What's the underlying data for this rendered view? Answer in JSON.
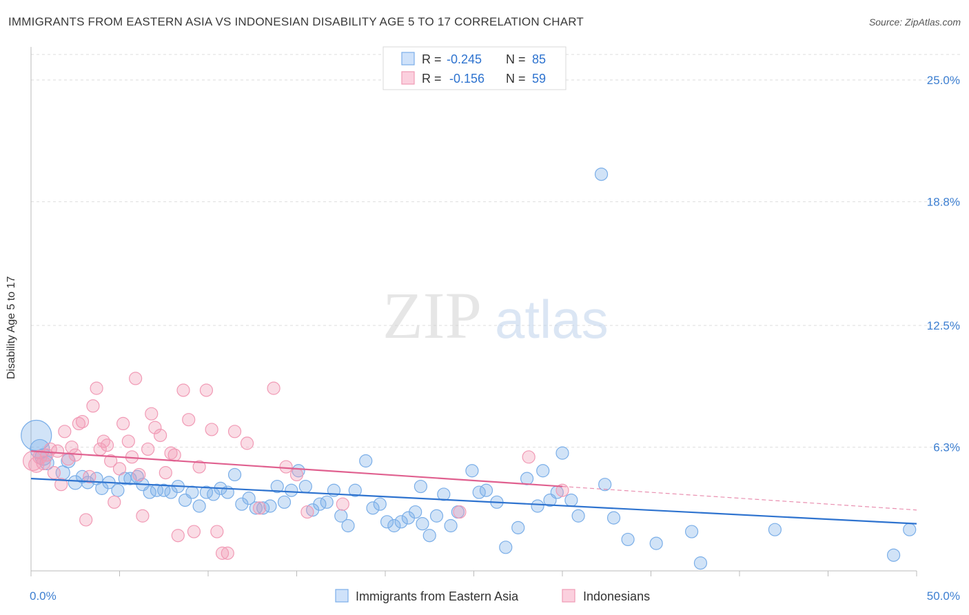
{
  "header": {
    "title": "IMMIGRANTS FROM EASTERN ASIA VS INDONESIAN DISABILITY AGE 5 TO 17 CORRELATION CHART",
    "source": "Source: ZipAtlas.com"
  },
  "watermark": {
    "zip": "ZIP",
    "atlas": "atlas"
  },
  "chart_data": {
    "type": "scatter",
    "ylabel": "Disability Age 5 to 17",
    "xlim": [
      0,
      50
    ],
    "ylim": [
      0,
      26.3
    ],
    "x_tick_labels": [
      "0.0%",
      "50.0%"
    ],
    "y_ticks": [
      6.3,
      12.5,
      18.8,
      25.0
    ],
    "y_tick_labels": [
      "6.3%",
      "12.5%",
      "18.8%",
      "25.0%"
    ],
    "grid": true,
    "legend_stats": [
      {
        "r_label": "R =",
        "r_value": "-0.245",
        "n_label": "N =",
        "n_value": "85",
        "color": "#7aaee8"
      },
      {
        "r_label": "R =",
        "r_value": "-0.156",
        "n_label": "N =",
        "n_value": "59",
        "color": "#f19ab5"
      }
    ],
    "series": [
      {
        "name": "Immigrants from Eastern Asia",
        "color": "#7aaee8",
        "line_color": "#2e73cf",
        "trend": {
          "x0": 0,
          "y0": 4.7,
          "x1": 50,
          "y1": 2.4
        },
        "points": [
          [
            0.3,
            6.9,
            22
          ],
          [
            0.5,
            6.2,
            14
          ],
          [
            0.7,
            5.8,
            12
          ],
          [
            0.9,
            5.5,
            10
          ],
          [
            1.8,
            5.0,
            10
          ],
          [
            2.1,
            5.6,
            10
          ],
          [
            2.5,
            4.5,
            10
          ],
          [
            2.9,
            4.8,
            9
          ],
          [
            3.2,
            4.5,
            9
          ],
          [
            3.7,
            4.7,
            9
          ],
          [
            4.0,
            4.2,
            9
          ],
          [
            4.4,
            4.5,
            9
          ],
          [
            4.9,
            4.1,
            9
          ],
          [
            5.3,
            4.7,
            9
          ],
          [
            5.6,
            4.7,
            9
          ],
          [
            6.0,
            4.8,
            9
          ],
          [
            6.3,
            4.4,
            9
          ],
          [
            6.7,
            4.0,
            9
          ],
          [
            7.1,
            4.1,
            9
          ],
          [
            7.5,
            4.1,
            9
          ],
          [
            7.9,
            4.0,
            9
          ],
          [
            8.3,
            4.3,
            9
          ],
          [
            8.7,
            3.6,
            9
          ],
          [
            9.1,
            4.0,
            9
          ],
          [
            9.5,
            3.3,
            9
          ],
          [
            9.9,
            4.0,
            9
          ],
          [
            10.3,
            3.9,
            9
          ],
          [
            10.7,
            4.2,
            9
          ],
          [
            11.1,
            4.0,
            9
          ],
          [
            11.5,
            4.9,
            9
          ],
          [
            11.9,
            3.4,
            9
          ],
          [
            12.3,
            3.7,
            9
          ],
          [
            12.7,
            3.2,
            9
          ],
          [
            13.1,
            3.2,
            9
          ],
          [
            13.5,
            3.3,
            9
          ],
          [
            13.9,
            4.3,
            9
          ],
          [
            14.3,
            3.5,
            9
          ],
          [
            14.7,
            4.1,
            9
          ],
          [
            15.1,
            5.1,
            9
          ],
          [
            15.5,
            4.3,
            9
          ],
          [
            15.9,
            3.1,
            9
          ],
          [
            16.3,
            3.4,
            9
          ],
          [
            16.7,
            3.5,
            9
          ],
          [
            17.1,
            4.1,
            9
          ],
          [
            17.5,
            2.8,
            9
          ],
          [
            17.9,
            2.3,
            9
          ],
          [
            18.3,
            4.1,
            9
          ],
          [
            18.9,
            5.6,
            9
          ],
          [
            19.3,
            3.2,
            9
          ],
          [
            19.7,
            3.4,
            9
          ],
          [
            20.1,
            2.5,
            9
          ],
          [
            20.5,
            2.3,
            9
          ],
          [
            20.9,
            2.5,
            9
          ],
          [
            21.3,
            2.7,
            9
          ],
          [
            21.7,
            3.0,
            9
          ],
          [
            22.1,
            2.4,
            9
          ],
          [
            22.5,
            1.8,
            9
          ],
          [
            22.0,
            4.3,
            9
          ],
          [
            22.9,
            2.8,
            9
          ],
          [
            23.3,
            3.9,
            9
          ],
          [
            23.7,
            2.3,
            9
          ],
          [
            24.1,
            3.0,
            9
          ],
          [
            24.9,
            5.1,
            9
          ],
          [
            25.3,
            4.0,
            9
          ],
          [
            25.7,
            4.1,
            9
          ],
          [
            26.3,
            3.5,
            9
          ],
          [
            26.8,
            1.2,
            9
          ],
          [
            27.5,
            2.2,
            9
          ],
          [
            28.0,
            4.7,
            9
          ],
          [
            28.6,
            3.3,
            9
          ],
          [
            28.9,
            5.1,
            9
          ],
          [
            29.3,
            3.6,
            9
          ],
          [
            29.7,
            4.0,
            9
          ],
          [
            30.0,
            6.0,
            9
          ],
          [
            30.5,
            3.6,
            9
          ],
          [
            30.9,
            2.8,
            9
          ],
          [
            32.2,
            20.2,
            9
          ],
          [
            32.4,
            4.4,
            9
          ],
          [
            32.9,
            2.7,
            9
          ],
          [
            33.7,
            1.6,
            9
          ],
          [
            35.3,
            1.4,
            9
          ],
          [
            37.3,
            2.0,
            9
          ],
          [
            37.8,
            0.4,
            9
          ],
          [
            42.0,
            2.1,
            9
          ],
          [
            48.7,
            0.8,
            9
          ],
          [
            49.6,
            2.1,
            9
          ]
        ]
      },
      {
        "name": "Indonesians",
        "color": "#f19ab5",
        "line_color": "#e0608f",
        "trend": {
          "x0": 0,
          "y0": 6.1,
          "x1": 30,
          "y1": 4.3
        },
        "trend_dashed": {
          "x0": 30,
          "y0": 4.3,
          "x1": 50,
          "y1": 3.1
        },
        "points": [
          [
            0.1,
            5.6,
            14
          ],
          [
            0.3,
            5.4,
            11
          ],
          [
            0.5,
            5.8,
            10
          ],
          [
            0.7,
            5.5,
            10
          ],
          [
            0.9,
            5.9,
            9
          ],
          [
            1.1,
            6.2,
            9
          ],
          [
            1.3,
            5.0,
            9
          ],
          [
            1.5,
            6.1,
            9
          ],
          [
            1.7,
            4.4,
            9
          ],
          [
            1.9,
            7.1,
            9
          ],
          [
            2.1,
            5.7,
            9
          ],
          [
            2.3,
            6.3,
            9
          ],
          [
            2.5,
            5.9,
            9
          ],
          [
            2.7,
            7.5,
            9
          ],
          [
            2.9,
            7.6,
            9
          ],
          [
            3.1,
            2.6,
            9
          ],
          [
            3.3,
            4.8,
            9
          ],
          [
            3.5,
            8.4,
            9
          ],
          [
            3.7,
            9.3,
            9
          ],
          [
            3.9,
            6.2,
            9
          ],
          [
            4.1,
            6.6,
            9
          ],
          [
            4.3,
            6.4,
            9
          ],
          [
            4.5,
            5.6,
            9
          ],
          [
            4.7,
            3.5,
            9
          ],
          [
            5.0,
            5.2,
            9
          ],
          [
            5.2,
            7.5,
            9
          ],
          [
            5.5,
            6.6,
            9
          ],
          [
            5.7,
            5.8,
            9
          ],
          [
            5.9,
            9.8,
            9
          ],
          [
            6.1,
            4.9,
            9
          ],
          [
            6.3,
            2.8,
            9
          ],
          [
            6.6,
            6.2,
            9
          ],
          [
            6.8,
            8.0,
            9
          ],
          [
            7.0,
            7.3,
            9
          ],
          [
            7.3,
            6.9,
            9
          ],
          [
            7.6,
            5.0,
            9
          ],
          [
            7.9,
            6.0,
            9
          ],
          [
            8.1,
            5.9,
            9
          ],
          [
            8.3,
            1.8,
            9
          ],
          [
            8.6,
            9.2,
            9
          ],
          [
            8.9,
            7.7,
            9
          ],
          [
            9.2,
            2.0,
            9
          ],
          [
            9.5,
            5.3,
            9
          ],
          [
            9.9,
            9.2,
            9
          ],
          [
            10.2,
            7.2,
            9
          ],
          [
            10.5,
            2.0,
            9
          ],
          [
            10.8,
            0.9,
            9
          ],
          [
            11.1,
            0.9,
            9
          ],
          [
            11.5,
            7.1,
            9
          ],
          [
            12.2,
            6.5,
            9
          ],
          [
            12.9,
            3.2,
            9
          ],
          [
            13.7,
            9.3,
            9
          ],
          [
            14.4,
            5.3,
            9
          ],
          [
            15.0,
            4.9,
            9
          ],
          [
            15.6,
            3.0,
            9
          ],
          [
            17.6,
            3.4,
            9
          ],
          [
            24.2,
            3.0,
            9
          ],
          [
            28.1,
            5.8,
            9
          ],
          [
            30.0,
            4.1,
            9
          ]
        ]
      }
    ]
  }
}
